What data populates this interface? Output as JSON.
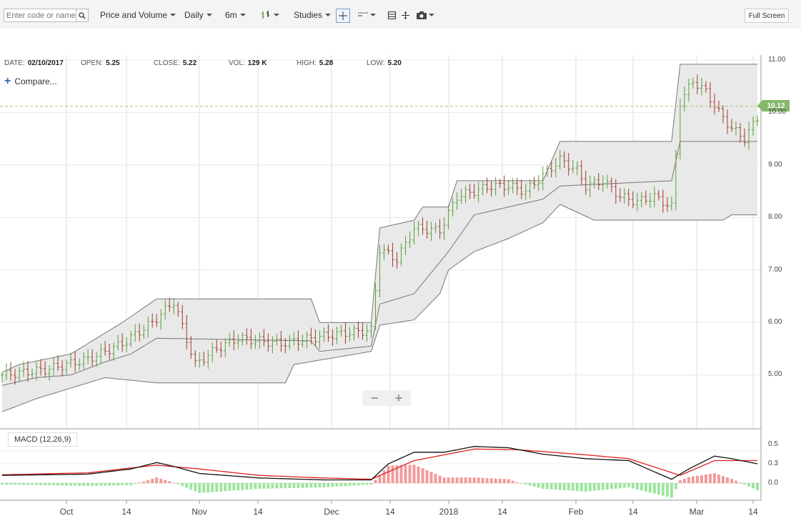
{
  "toolbar": {
    "search_placeholder": "Enter code or name",
    "chart_type": "Price and Volume",
    "interval": "Daily",
    "range": "6m",
    "studies": "Studies",
    "fullscreen": "Full Screen"
  },
  "info": {
    "date_label": "DATE:",
    "date": "02/10/2017",
    "open_label": "OPEN:",
    "open": "5.25",
    "close_label": "CLOSE:",
    "close": "5.22",
    "vol_label": "VOL:",
    "vol": "129 K",
    "high_label": "HIGH:",
    "high": "5.28",
    "low_label": "LOW:",
    "low": "5.20"
  },
  "compare": "Compare...",
  "zoom": {
    "minus": "−",
    "plus": "+"
  },
  "macd_label": "MACD (12,26,9)",
  "price_tag": "10.12",
  "colors": {
    "up": "#5a9e3e",
    "down": "#a33a2a",
    "band_fill": "#e9e9e9",
    "band_line": "#777777",
    "macd": "#111111",
    "signal": "#e02020",
    "hist_pos": "#f39a9a",
    "hist_neg": "#9de59d",
    "tag": "#86b96b"
  },
  "chart_data": {
    "type": "candlestick",
    "y_ticks": [
      "11.00",
      "10.00",
      "9.00",
      "8.00",
      "7.00",
      "6.00",
      "5.00"
    ],
    "macd_ticks": [
      "0.5",
      "0.3",
      "0.0"
    ],
    "x_ticks": [
      "Oct",
      "14",
      "Nov",
      "14",
      "Dec",
      "14",
      "2018",
      "14",
      "Feb",
      "14",
      "Mar",
      "14"
    ],
    "ylim": [
      4.2,
      11.1
    ],
    "macd_ylim": [
      -0.1,
      0.6
    ],
    "last_price": 10.12,
    "price_path": [
      [
        0,
        5.0
      ],
      [
        10,
        5.1
      ],
      [
        20,
        5.3
      ],
      [
        28,
        5.6
      ],
      [
        35,
        6.0
      ],
      [
        40,
        6.4
      ],
      [
        45,
        5.2
      ],
      [
        50,
        5.5
      ],
      [
        55,
        5.7
      ],
      [
        65,
        5.6
      ],
      [
        72,
        5.7
      ],
      [
        80,
        5.8
      ],
      [
        86,
        5.85
      ],
      [
        88,
        7.4
      ],
      [
        92,
        7.2
      ],
      [
        96,
        7.8
      ],
      [
        102,
        7.75
      ],
      [
        106,
        8.4
      ],
      [
        110,
        8.5
      ],
      [
        114,
        8.6
      ],
      [
        118,
        8.6
      ],
      [
        122,
        8.5
      ],
      [
        126,
        8.8
      ],
      [
        130,
        9.1
      ],
      [
        134,
        8.9
      ],
      [
        136,
        8.6
      ],
      [
        140,
        8.7
      ],
      [
        144,
        8.4
      ],
      [
        148,
        8.3
      ],
      [
        152,
        8.4
      ],
      [
        156,
        8.2
      ],
      [
        158,
        10.2
      ],
      [
        161,
        10.6
      ],
      [
        164,
        10.4
      ],
      [
        167,
        10.0
      ],
      [
        170,
        9.7
      ],
      [
        173,
        9.5
      ],
      [
        176,
        9.9
      ]
    ],
    "band_upper": [
      [
        0,
        5.05
      ],
      [
        4,
        5.2
      ],
      [
        16,
        5.4
      ],
      [
        28,
        6.0
      ],
      [
        36,
        6.45
      ],
      [
        72,
        6.45
      ],
      [
        74,
        6.0
      ],
      [
        86,
        6.0
      ],
      [
        88,
        7.8
      ],
      [
        96,
        7.95
      ],
      [
        98,
        8.2
      ],
      [
        104,
        8.2
      ],
      [
        106,
        8.7
      ],
      [
        126,
        8.7
      ],
      [
        130,
        9.45
      ],
      [
        156,
        9.45
      ],
      [
        158,
        10.92
      ],
      [
        176,
        10.92
      ]
    ],
    "band_middle": [
      [
        0,
        4.8
      ],
      [
        8,
        4.95
      ],
      [
        16,
        5.0
      ],
      [
        24,
        5.25
      ],
      [
        30,
        5.4
      ],
      [
        36,
        5.7
      ],
      [
        72,
        5.65
      ],
      [
        74,
        5.45
      ],
      [
        86,
        5.55
      ],
      [
        88,
        6.35
      ],
      [
        96,
        6.55
      ],
      [
        104,
        7.35
      ],
      [
        110,
        8.05
      ],
      [
        118,
        8.2
      ],
      [
        126,
        8.35
      ],
      [
        130,
        8.6
      ],
      [
        156,
        8.7
      ],
      [
        158,
        9.45
      ],
      [
        176,
        9.45
      ]
    ],
    "band_lower": [
      [
        0,
        4.3
      ],
      [
        8,
        4.55
      ],
      [
        16,
        4.75
      ],
      [
        24,
        4.95
      ],
      [
        36,
        4.85
      ],
      [
        66,
        4.85
      ],
      [
        68,
        5.2
      ],
      [
        86,
        5.45
      ],
      [
        88,
        5.95
      ],
      [
        96,
        6.05
      ],
      [
        102,
        6.55
      ],
      [
        104,
        7.0
      ],
      [
        110,
        7.35
      ],
      [
        118,
        7.6
      ],
      [
        126,
        7.9
      ],
      [
        130,
        8.25
      ],
      [
        138,
        7.95
      ],
      [
        168,
        7.95
      ],
      [
        170,
        8.05
      ],
      [
        176,
        8.05
      ]
    ],
    "macd_path": [
      [
        0,
        0.12
      ],
      [
        20,
        0.14
      ],
      [
        30,
        0.22
      ],
      [
        36,
        0.32
      ],
      [
        40,
        0.26
      ],
      [
        46,
        0.15
      ],
      [
        60,
        0.08
      ],
      [
        75,
        0.05
      ],
      [
        86,
        0.05
      ],
      [
        90,
        0.3
      ],
      [
        96,
        0.48
      ],
      [
        103,
        0.48
      ],
      [
        110,
        0.57
      ],
      [
        118,
        0.55
      ],
      [
        126,
        0.45
      ],
      [
        136,
        0.38
      ],
      [
        146,
        0.35
      ],
      [
        156,
        0.06
      ],
      [
        160,
        0.22
      ],
      [
        166,
        0.42
      ],
      [
        170,
        0.38
      ],
      [
        176,
        0.3
      ]
    ],
    "signal_path": [
      [
        0,
        0.13
      ],
      [
        20,
        0.16
      ],
      [
        36,
        0.28
      ],
      [
        46,
        0.22
      ],
      [
        60,
        0.12
      ],
      [
        75,
        0.08
      ],
      [
        86,
        0.06
      ],
      [
        96,
        0.35
      ],
      [
        110,
        0.53
      ],
      [
        120,
        0.52
      ],
      [
        136,
        0.44
      ],
      [
        146,
        0.38
      ],
      [
        158,
        0.12
      ],
      [
        166,
        0.35
      ],
      [
        176,
        0.35
      ]
    ]
  },
  "x_labels": [
    "Oct",
    "14",
    "Nov",
    "14",
    "Dec",
    "14",
    "2018",
    "14",
    "Feb",
    "14",
    "Mar",
    "14"
  ]
}
